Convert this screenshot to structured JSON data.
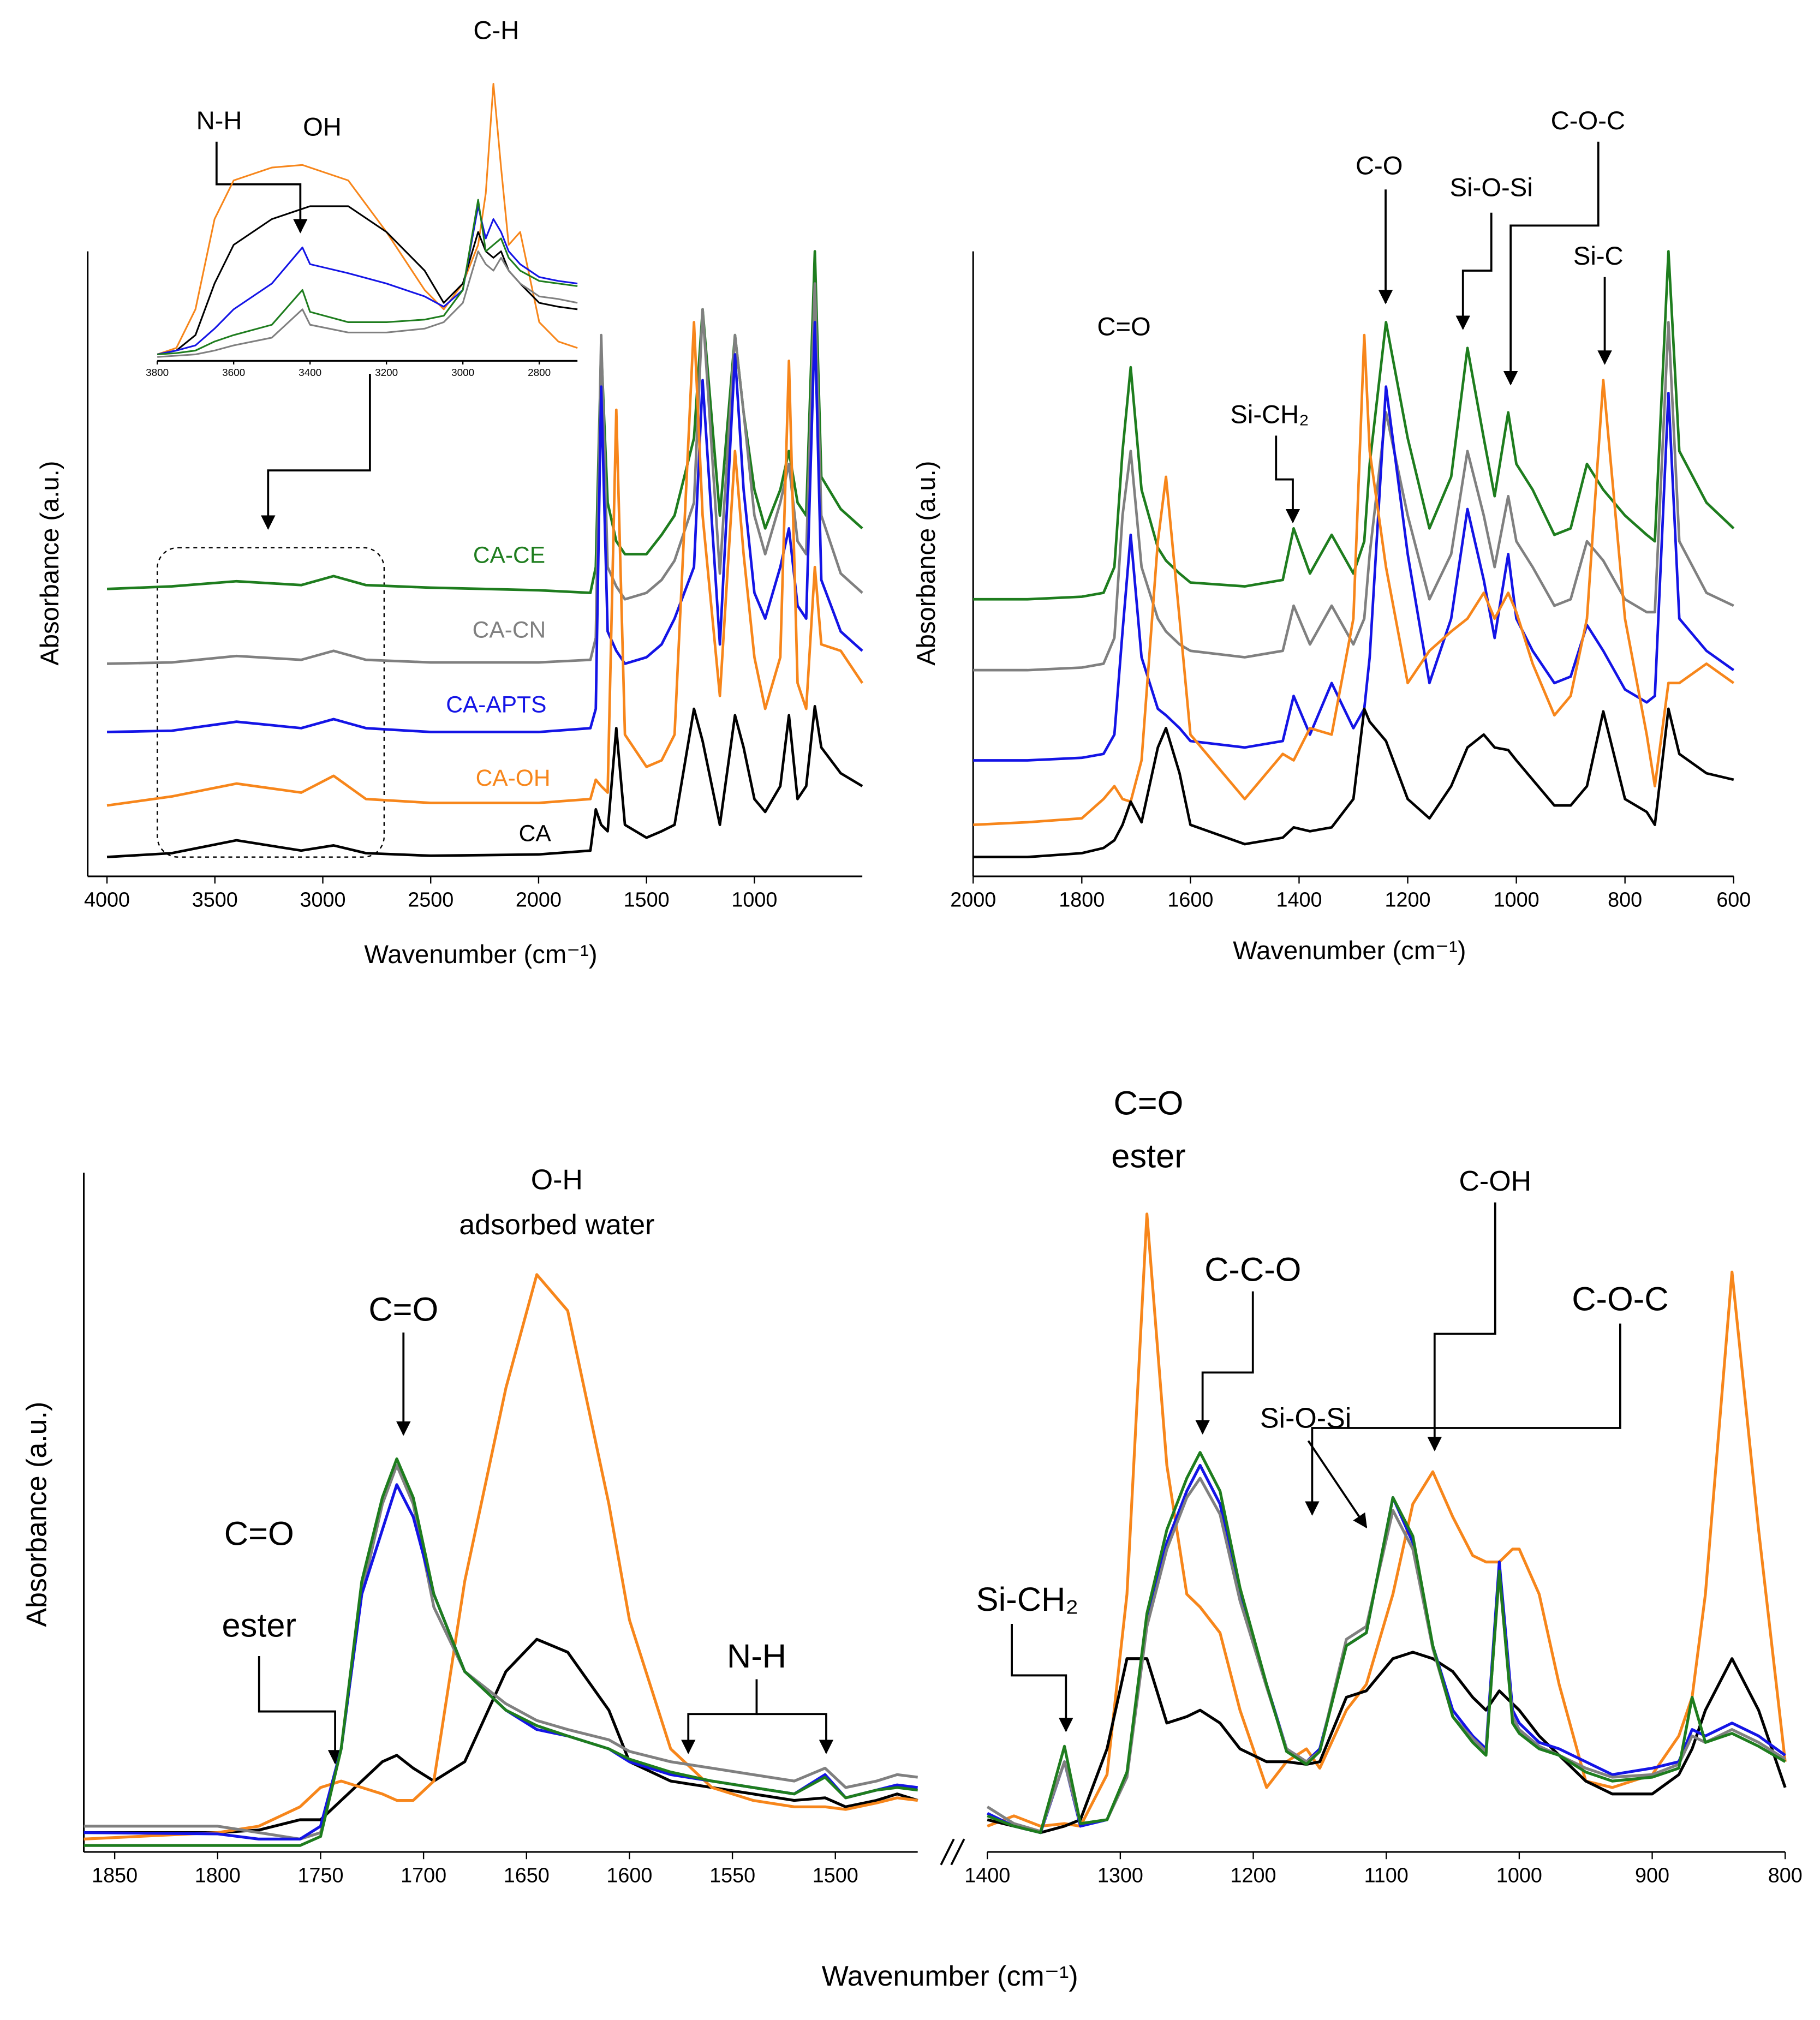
{
  "chart_data": [
    {
      "type": "line",
      "x_label": "Wavenumber (cm⁻¹)",
      "y_label": "Absorbance (a.u.)",
      "x": [
        4000,
        3700,
        3400,
        3100,
        2950,
        2800,
        2500,
        2000,
        1760,
        1735,
        1710,
        1680,
        1640,
        1600,
        1500,
        1430,
        1370,
        1280,
        1240,
        1160,
        1090,
        1050,
        1000,
        950,
        880,
        840,
        800,
        760,
        720,
        690,
        600,
        500
      ],
      "xlim": [
        4000,
        500
      ],
      "xticks": [
        4000,
        3500,
        3000,
        2500,
        2000,
        1500,
        1000
      ],
      "ylim": [
        0,
        500
      ],
      "series": [
        {
          "name": "CA-CE",
          "color": "#1e7d1e",
          "values": [
            223,
            225,
            229,
            226,
            233,
            226,
            224,
            222,
            220,
            240,
            410,
            290,
            260,
            250,
            250,
            265,
            280,
            340,
            440,
            280,
            420,
            360,
            300,
            270,
            300,
            330,
            290,
            280,
            485,
            310,
            285,
            270
          ]
        },
        {
          "name": "CA-CN",
          "color": "#808080",
          "values": [
            165,
            166,
            171,
            168,
            175,
            168,
            166,
            166,
            168,
            185,
            420,
            240,
            225,
            215,
            220,
            230,
            245,
            290,
            440,
            235,
            420,
            360,
            280,
            250,
            290,
            320,
            260,
            250,
            460,
            280,
            235,
            220
          ]
        },
        {
          "name": "CA-APTS",
          "color": "#1414e6",
          "values": [
            112,
            113,
            120,
            115,
            122,
            115,
            112,
            112,
            115,
            130,
            380,
            190,
            175,
            165,
            170,
            180,
            200,
            240,
            385,
            180,
            405,
            300,
            220,
            200,
            240,
            270,
            210,
            200,
            430,
            230,
            190,
            175
          ]
        },
        {
          "name": "CA-OH",
          "color": "#f7861b",
          "values": [
            55,
            62,
            72,
            65,
            78,
            60,
            57,
            57,
            60,
            75,
            70,
            65,
            362,
            110,
            85,
            90,
            110,
            430,
            280,
            140,
            330,
            250,
            170,
            130,
            170,
            400,
            150,
            130,
            240,
            180,
            175,
            150
          ]
        },
        {
          "name": "CA",
          "color": "#000000",
          "values": [
            15,
            18,
            28,
            20,
            24,
            18,
            16,
            17,
            20,
            52,
            40,
            35,
            115,
            40,
            30,
            35,
            40,
            130,
            105,
            40,
            125,
            100,
            60,
            50,
            70,
            125,
            60,
            70,
            132,
            100,
            80,
            70
          ]
        }
      ]
    },
    {
      "type": "line",
      "annotations": [
        "N-H",
        "OH",
        "C-H"
      ],
      "x": [
        3800,
        3750,
        3700,
        3650,
        3600,
        3500,
        3420,
        3400,
        3300,
        3200,
        3100,
        3050,
        3000,
        2960,
        2940,
        2920,
        2900,
        2880,
        2850,
        2800,
        2750,
        2700
      ],
      "xlim": [
        3800,
        2700
      ],
      "xticks": [
        3800,
        3600,
        3400,
        3200,
        3000,
        2800
      ],
      "ylim": [
        0,
        260
      ],
      "series": [
        {
          "color": "#f7861b",
          "values": [
            5,
            10,
            40,
            110,
            140,
            150,
            152,
            150,
            140,
            100,
            55,
            40,
            60,
            90,
            130,
            215,
            150,
            90,
            100,
            30,
            15,
            10
          ]
        },
        {
          "color": "#000000",
          "values": [
            5,
            8,
            20,
            60,
            90,
            110,
            118,
            120,
            120,
            100,
            70,
            45,
            60,
            100,
            85,
            80,
            85,
            70,
            60,
            45,
            42,
            40
          ]
        },
        {
          "color": "#1414e6",
          "values": [
            5,
            8,
            12,
            25,
            40,
            60,
            88,
            75,
            68,
            60,
            50,
            42,
            55,
            120,
            95,
            110,
            100,
            85,
            75,
            65,
            62,
            60
          ]
        },
        {
          "color": "#1e7d1e",
          "values": [
            5,
            6,
            8,
            15,
            20,
            28,
            55,
            38,
            30,
            30,
            32,
            35,
            55,
            125,
            85,
            90,
            95,
            80,
            70,
            62,
            60,
            58
          ]
        },
        {
          "color": "#808080",
          "values": [
            3,
            4,
            5,
            8,
            12,
            18,
            40,
            28,
            22,
            22,
            25,
            30,
            45,
            85,
            75,
            70,
            80,
            70,
            60,
            50,
            48,
            45
          ]
        }
      ]
    },
    {
      "type": "line",
      "x_label": "Wavenumber (cm⁻¹)",
      "y_label": "Absorbance (a.u.)",
      "annotations": [
        "C=O",
        "Si-CH₂",
        "C-O",
        "Si-O-Si",
        "C-O-C",
        "Si-C"
      ],
      "x": [
        2000,
        1900,
        1800,
        1760,
        1740,
        1725,
        1710,
        1690,
        1660,
        1645,
        1620,
        1600,
        1500,
        1430,
        1410,
        1380,
        1340,
        1300,
        1280,
        1270,
        1240,
        1200,
        1160,
        1120,
        1090,
        1060,
        1040,
        1015,
        1000,
        970,
        930,
        900,
        870,
        840,
        800,
        760,
        745,
        720,
        700,
        650,
        600
      ],
      "xlim": [
        2000,
        600
      ],
      "xticks": [
        2000,
        1800,
        1600,
        1400,
        1200,
        1000,
        800,
        600
      ],
      "ylim": [
        0,
        500
      ],
      "series": [
        {
          "color": "#1e7d1e",
          "values": [
            215,
            215,
            217,
            220,
            240,
            330,
            395,
            300,
            255,
            245,
            235,
            228,
            225,
            230,
            270,
            235,
            265,
            235,
            260,
            320,
            430,
            340,
            270,
            310,
            410,
            340,
            295,
            360,
            320,
            300,
            265,
            270,
            320,
            300,
            280,
            265,
            260,
            485,
            330,
            290,
            270
          ]
        },
        {
          "color": "#808080",
          "values": [
            160,
            160,
            162,
            165,
            185,
            280,
            330,
            240,
            200,
            190,
            180,
            175,
            170,
            175,
            210,
            180,
            210,
            180,
            200,
            250,
            360,
            280,
            215,
            250,
            330,
            280,
            240,
            295,
            260,
            240,
            210,
            215,
            260,
            245,
            215,
            205,
            205,
            430,
            260,
            220,
            210
          ]
        },
        {
          "color": "#1414e6",
          "values": [
            90,
            90,
            92,
            95,
            110,
            190,
            265,
            170,
            130,
            125,
            115,
            105,
            100,
            105,
            140,
            110,
            150,
            115,
            130,
            170,
            380,
            250,
            150,
            200,
            285,
            230,
            185,
            250,
            200,
            175,
            150,
            155,
            195,
            175,
            145,
            135,
            140,
            375,
            200,
            175,
            160
          ]
        },
        {
          "color": "#f7861b",
          "values": [
            40,
            42,
            45,
            60,
            70,
            60,
            58,
            90,
            260,
            310,
            200,
            110,
            60,
            95,
            90,
            115,
            110,
            200,
            420,
            330,
            240,
            150,
            175,
            190,
            200,
            220,
            200,
            220,
            205,
            165,
            125,
            140,
            200,
            385,
            200,
            110,
            70,
            150,
            150,
            165,
            150
          ]
        },
        {
          "color": "#000000",
          "values": [
            15,
            15,
            18,
            22,
            28,
            40,
            58,
            42,
            100,
            115,
            80,
            40,
            25,
            30,
            38,
            35,
            38,
            60,
            130,
            120,
            105,
            60,
            45,
            70,
            100,
            110,
            100,
            98,
            90,
            75,
            55,
            55,
            70,
            128,
            60,
            50,
            40,
            130,
            95,
            80,
            75
          ]
        }
      ]
    },
    {
      "type": "line",
      "y_label": "Absorbance (a.u.)",
      "x_label": "Wavenumber (cm⁻¹)",
      "annotations": [
        "O-H",
        "adsorbed water",
        "C=O",
        "C=O",
        "ester",
        "N-H"
      ],
      "x": [
        1865,
        1800,
        1780,
        1760,
        1750,
        1740,
        1730,
        1720,
        1713,
        1705,
        1695,
        1680,
        1660,
        1645,
        1630,
        1610,
        1600,
        1580,
        1560,
        1540,
        1520,
        1505,
        1495,
        1480,
        1470,
        1460
      ],
      "xlim": [
        1865,
        1460
      ],
      "xticks": [
        1850,
        1800,
        1750,
        1700,
        1650,
        1600,
        1550,
        1500
      ],
      "ylim": [
        0,
        530
      ],
      "series": [
        {
          "color": "#000000",
          "values": [
            15,
            15,
            17,
            25,
            25,
            40,
            55,
            70,
            75,
            65,
            55,
            70,
            140,
            165,
            155,
            110,
            70,
            55,
            50,
            45,
            40,
            42,
            35,
            40,
            45,
            40
          ]
        },
        {
          "color": "#f7861b",
          "values": [
            10,
            15,
            20,
            35,
            50,
            55,
            50,
            45,
            40,
            40,
            55,
            210,
            360,
            448,
            420,
            270,
            180,
            80,
            50,
            40,
            35,
            35,
            33,
            38,
            42,
            40
          ]
        },
        {
          "color": "#808080",
          "values": [
            20,
            20,
            15,
            10,
            15,
            80,
            200,
            270,
            300,
            270,
            190,
            140,
            115,
            102,
            95,
            87,
            78,
            70,
            65,
            60,
            55,
            65,
            50,
            55,
            60,
            58
          ]
        },
        {
          "color": "#1414e6",
          "values": [
            15,
            14,
            10,
            10,
            20,
            80,
            200,
            250,
            285,
            260,
            200,
            140,
            110,
            95,
            90,
            80,
            70,
            60,
            55,
            50,
            45,
            60,
            42,
            48,
            52,
            50
          ]
        },
        {
          "color": "#1e7d1e",
          "values": [
            5,
            5,
            5,
            5,
            12,
            80,
            210,
            275,
            305,
            275,
            200,
            140,
            110,
            98,
            90,
            80,
            72,
            62,
            55,
            50,
            45,
            58,
            42,
            48,
            50,
            48
          ]
        }
      ]
    },
    {
      "type": "line",
      "annotations": [
        "C=O",
        "ester",
        "C-C-O",
        "Si-O-Si",
        "C-OH",
        "C-O-C",
        "Si-CH₂"
      ],
      "x": [
        1400,
        1380,
        1360,
        1342,
        1330,
        1310,
        1295,
        1280,
        1265,
        1250,
        1240,
        1225,
        1210,
        1190,
        1175,
        1160,
        1150,
        1130,
        1115,
        1095,
        1080,
        1065,
        1050,
        1035,
        1025,
        1015,
        1005,
        1000,
        985,
        970,
        950,
        930,
        900,
        880,
        870,
        860,
        840,
        820,
        800
      ],
      "xlim": [
        1400,
        800
      ],
      "xticks": [
        1400,
        1300,
        1200,
        1100,
        1000,
        900,
        800
      ],
      "ylim": [
        0,
        530
      ],
      "series": [
        {
          "color": "#f7861b",
          "values": [
            20,
            28,
            20,
            22,
            20,
            60,
            200,
            495,
            300,
            200,
            190,
            170,
            110,
            50,
            70,
            80,
            65,
            110,
            130,
            200,
            270,
            295,
            260,
            230,
            225,
            225,
            235,
            235,
            200,
            130,
            55,
            50,
            60,
            90,
            120,
            200,
            450,
            250,
            70
          ]
        },
        {
          "color": "#000000",
          "values": [
            25,
            20,
            15,
            20,
            25,
            80,
            150,
            150,
            100,
            105,
            110,
            100,
            80,
            70,
            70,
            68,
            70,
            120,
            125,
            150,
            155,
            150,
            140,
            120,
            110,
            125,
            115,
            110,
            90,
            75,
            55,
            45,
            45,
            60,
            80,
            110,
            150,
            110,
            50
          ]
        },
        {
          "color": "#1414e6",
          "values": [
            30,
            20,
            15,
            70,
            20,
            25,
            60,
            180,
            240,
            280,
            300,
            270,
            200,
            130,
            80,
            70,
            80,
            160,
            170,
            275,
            240,
            160,
            110,
            90,
            80,
            225,
            110,
            100,
            85,
            80,
            70,
            60,
            65,
            70,
            95,
            90,
            100,
            90,
            75
          ]
        },
        {
          "color": "#808080",
          "values": [
            35,
            22,
            16,
            70,
            22,
            25,
            58,
            175,
            235,
            275,
            290,
            262,
            195,
            128,
            80,
            70,
            78,
            165,
            175,
            265,
            235,
            158,
            105,
            88,
            78,
            215,
            105,
            95,
            82,
            75,
            65,
            58,
            60,
            68,
            90,
            85,
            95,
            85,
            72
          ]
        },
        {
          "color": "#1e7d1e",
          "values": [
            28,
            20,
            15,
            82,
            22,
            25,
            62,
            185,
            250,
            290,
            310,
            280,
            205,
            130,
            78,
            68,
            78,
            160,
            170,
            275,
            245,
            160,
            105,
            85,
            75,
            218,
            100,
            92,
            80,
            75,
            62,
            55,
            58,
            65,
            120,
            85,
            92,
            82,
            70
          ]
        }
      ]
    }
  ]
}
